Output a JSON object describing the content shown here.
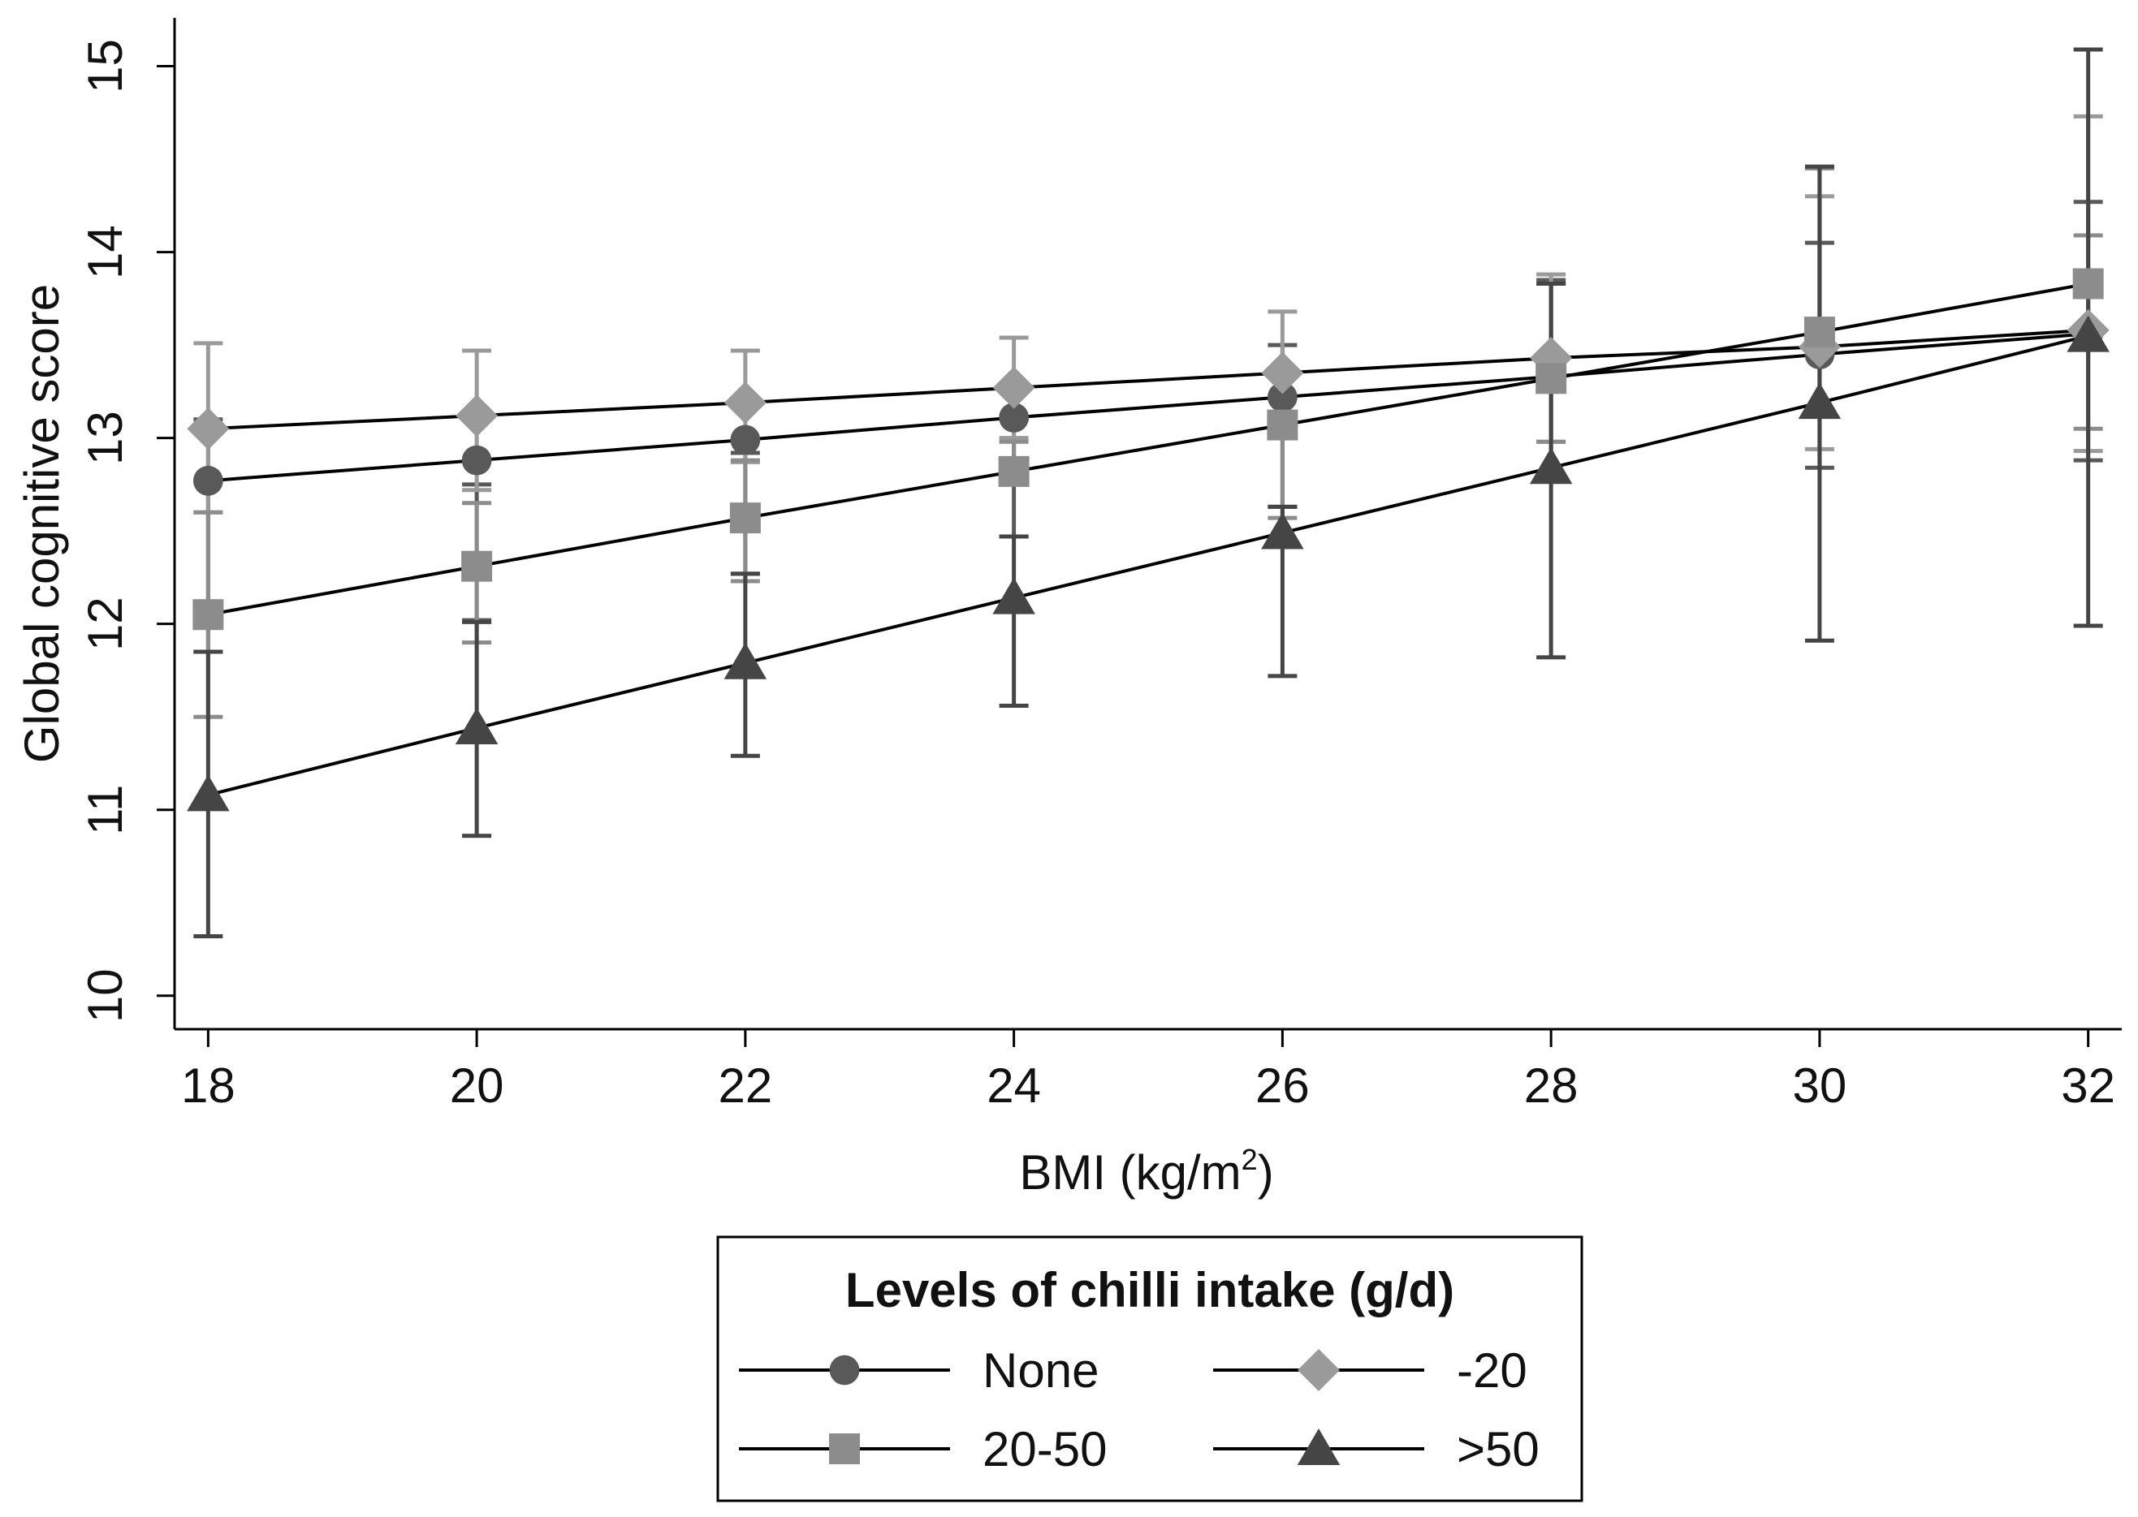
{
  "chart_data": {
    "type": "line",
    "title": "",
    "xlabel": "BMI (kg/m",
    "xlabel_sup": "2",
    "xlabel_close": ")",
    "ylabel": "Global cognitive score",
    "x": [
      18,
      20,
      22,
      24,
      26,
      28,
      30,
      32
    ],
    "xticks": [
      "18",
      "20",
      "22",
      "24",
      "26",
      "28",
      "30",
      "32"
    ],
    "yticks": [
      "10",
      "11",
      "12",
      "13",
      "14",
      "15"
    ],
    "xlim": [
      17.75,
      32.25
    ],
    "ylim": [
      9.82,
      15.26
    ],
    "grid": false,
    "legend": {
      "title": "Levels of chilli intake (g/d)",
      "position": "bottom-center"
    },
    "series": [
      {
        "name": "None",
        "marker": "circle",
        "color": "#595959",
        "values": [
          12.77,
          12.88,
          12.99,
          13.11,
          13.22,
          13.33,
          13.45,
          13.56
        ],
        "lower": [
          11.85,
          12.02,
          12.27,
          12.47,
          12.63,
          12.78,
          12.84,
          12.88
        ],
        "upper": [
          13.1,
          12.75,
          12.92,
          13.1,
          13.5,
          13.85,
          14.05,
          14.27
        ]
      },
      {
        "name": "-20",
        "marker": "diamond",
        "color": "#9a9a9a",
        "values": [
          13.05,
          13.12,
          13.19,
          13.27,
          13.35,
          13.43,
          13.49,
          13.58
        ],
        "lower": [
          12.6,
          12.72,
          12.87,
          13.0,
          13.03,
          12.98,
          12.94,
          12.93
        ],
        "upper": [
          13.51,
          13.47,
          13.47,
          13.54,
          13.68,
          13.88,
          14.3,
          14.73
        ]
      },
      {
        "name": "20-50",
        "marker": "square",
        "color": "#8c8c8c",
        "values": [
          12.05,
          12.31,
          12.57,
          12.82,
          13.07,
          13.32,
          13.57,
          13.83
        ],
        "lower": [
          11.5,
          11.9,
          12.23,
          12.78,
          12.57,
          12.98,
          13.12,
          13.05
        ],
        "upper": [
          12.6,
          12.65,
          12.88,
          12.98,
          13.35,
          13.83,
          14.45,
          14.09
        ]
      },
      {
        "name": ">50",
        "marker": "triangle",
        "color": "#454545",
        "values": [
          11.08,
          11.44,
          11.79,
          12.14,
          12.49,
          12.84,
          13.19,
          13.55
        ],
        "lower": [
          10.32,
          10.86,
          11.29,
          11.56,
          11.72,
          11.82,
          11.91,
          11.99
        ],
        "upper": [
          11.85,
          12.01,
          12.27,
          12.47,
          12.63,
          13.83,
          14.46,
          15.09
        ]
      }
    ]
  }
}
